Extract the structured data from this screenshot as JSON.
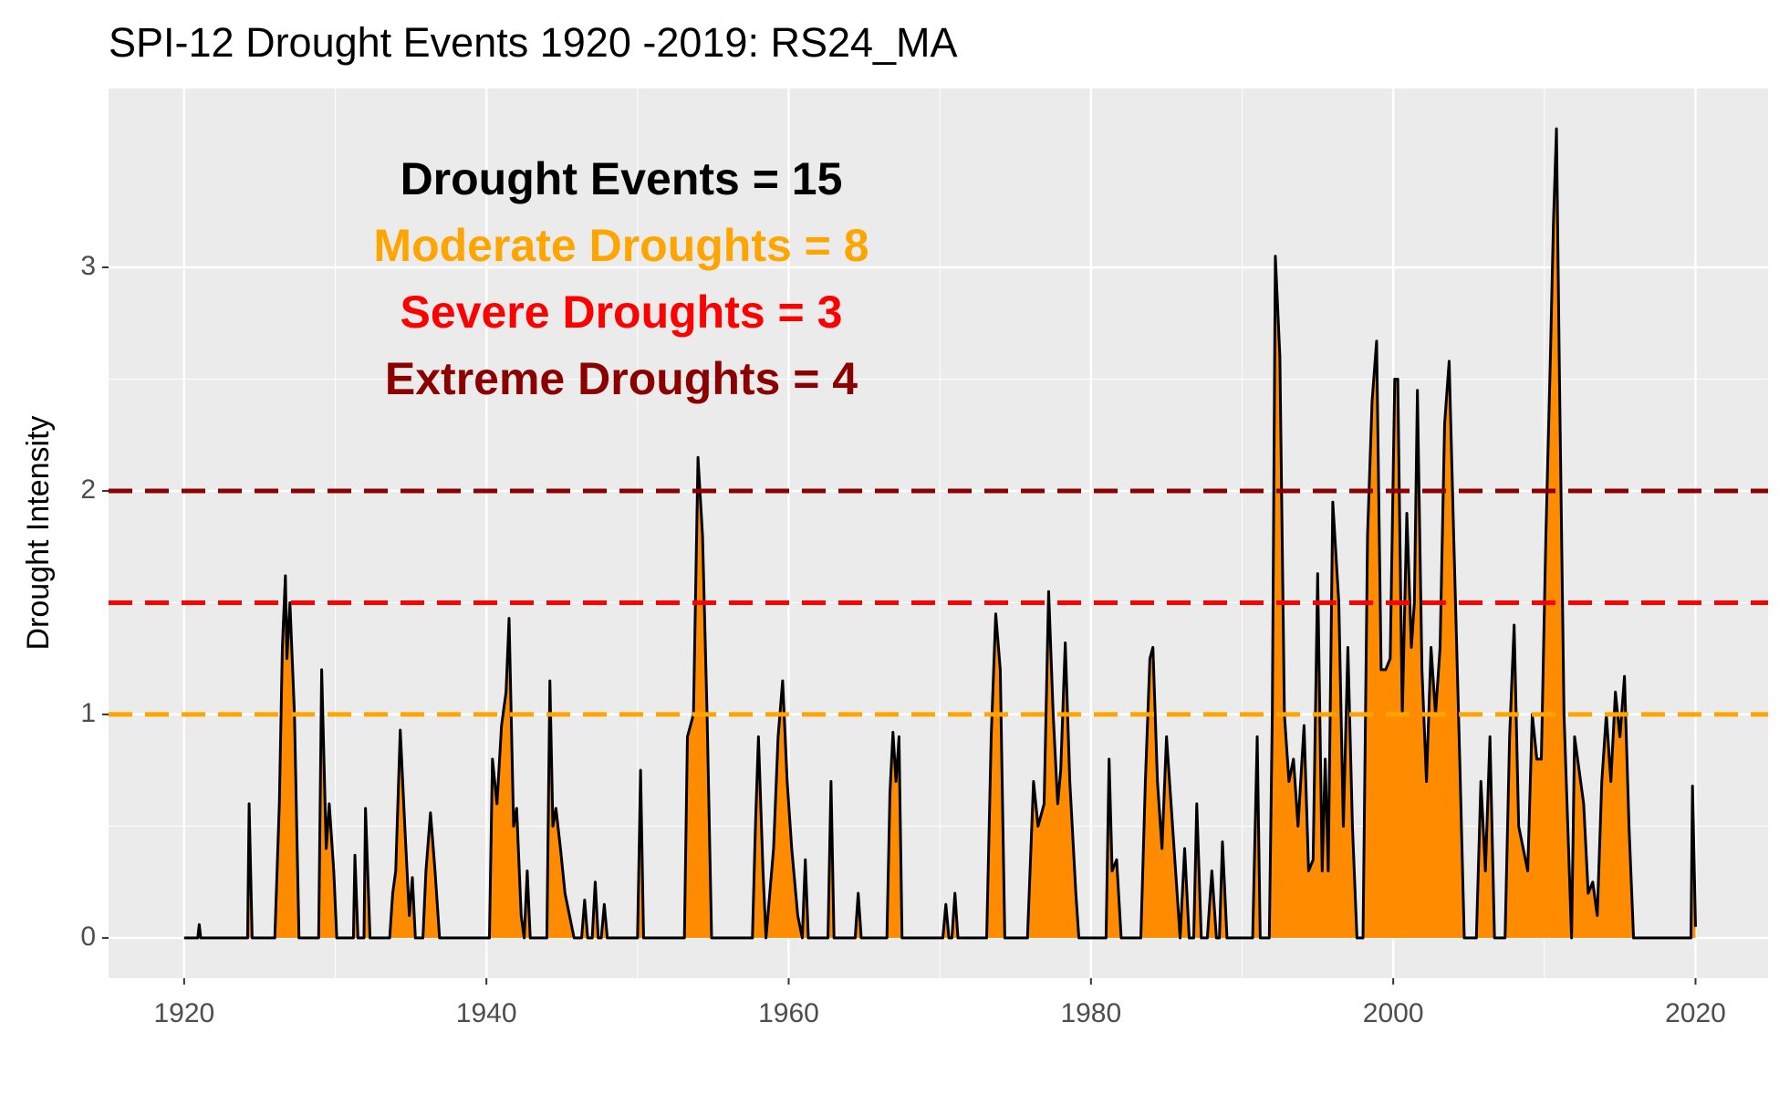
{
  "chart_data": {
    "type": "area",
    "title": "SPI-12 Drought Events 1920 -2019: RS24_MA",
    "y_label": "Drought Intensity",
    "x": [
      1920.0,
      1920.9,
      1921.0,
      1921.1,
      1924.2,
      1924.3,
      1924.5,
      1926.0,
      1926.3,
      1926.5,
      1926.7,
      1926.8,
      1927.0,
      1927.3,
      1927.6,
      1928.9,
      1929.1,
      1929.4,
      1929.6,
      1929.9,
      1930.1,
      1931.2,
      1931.3,
      1931.5,
      1931.9,
      1932.0,
      1932.3,
      1933.6,
      1933.8,
      1934.0,
      1934.3,
      1934.6,
      1934.9,
      1935.1,
      1935.3,
      1935.8,
      1936.0,
      1936.3,
      1936.6,
      1936.9,
      1940.2,
      1940.4,
      1940.7,
      1941.0,
      1941.3,
      1941.5,
      1941.8,
      1942.0,
      1942.3,
      1942.5,
      1942.7,
      1942.9,
      1944.0,
      1944.2,
      1944.4,
      1944.6,
      1944.9,
      1945.2,
      1945.5,
      1945.8,
      1946.3,
      1946.5,
      1946.7,
      1947.0,
      1947.2,
      1947.4,
      1947.6,
      1947.8,
      1948.0,
      1950.0,
      1950.2,
      1950.4,
      1953.1,
      1953.3,
      1953.7,
      1954.0,
      1954.3,
      1954.6,
      1954.9,
      1957.6,
      1957.8,
      1958.0,
      1958.3,
      1958.5,
      1959.0,
      1959.3,
      1959.6,
      1959.9,
      1960.2,
      1960.6,
      1960.9,
      1961.1,
      1961.3,
      1962.6,
      1962.8,
      1963.0,
      1964.4,
      1964.6,
      1964.8,
      1966.5,
      1966.7,
      1966.9,
      1967.1,
      1967.3,
      1967.5,
      1970.2,
      1970.4,
      1970.6,
      1970.8,
      1971.0,
      1971.2,
      1973.1,
      1973.4,
      1973.7,
      1974.0,
      1974.3,
      1975.8,
      1976.2,
      1976.5,
      1976.9,
      1977.2,
      1977.5,
      1977.8,
      1978.0,
      1978.3,
      1978.6,
      1979.0,
      1979.2,
      1981.0,
      1981.2,
      1981.4,
      1981.7,
      1982.0,
      1983.3,
      1983.6,
      1983.9,
      1984.1,
      1984.4,
      1984.7,
      1985.0,
      1985.3,
      1985.6,
      1985.9,
      1986.2,
      1986.5,
      1986.8,
      1987.0,
      1987.3,
      1987.7,
      1988.0,
      1988.3,
      1988.5,
      1988.7,
      1989.0,
      1990.7,
      1991.0,
      1991.2,
      1991.8,
      1992.0,
      1992.2,
      1992.5,
      1992.8,
      1993.1,
      1993.4,
      1993.7,
      1994.1,
      1994.4,
      1994.7,
      1995.0,
      1995.3,
      1995.5,
      1995.7,
      1996.0,
      1996.4,
      1996.7,
      1997.0,
      1997.3,
      1997.6,
      1998.0,
      1998.3,
      1998.6,
      1998.9,
      1999.2,
      1999.5,
      1999.8,
      2000.1,
      2000.3,
      2000.6,
      2000.9,
      2001.2,
      2001.4,
      2001.6,
      2001.9,
      2002.2,
      2002.5,
      2002.8,
      2003.1,
      2003.4,
      2003.7,
      2004.0,
      2004.4,
      2004.7,
      2005.5,
      2005.8,
      2006.1,
      2006.4,
      2006.7,
      2007.4,
      2007.7,
      2008.0,
      2008.3,
      2008.6,
      2008.9,
      2009.2,
      2009.5,
      2009.8,
      2010.1,
      2010.4,
      2010.6,
      2010.8,
      2011.0,
      2011.3,
      2011.6,
      2011.8,
      2012.0,
      2012.3,
      2012.6,
      2012.9,
      2013.2,
      2013.5,
      2013.8,
      2014.1,
      2014.4,
      2014.7,
      2015.0,
      2015.3,
      2015.6,
      2015.9,
      2019.7,
      2019.8,
      2020.0
    ],
    "series": [
      {
        "color": "#ff8c00",
        "line_color": "#000000",
        "values": [
          0,
          0,
          0.06,
          0,
          0,
          0.6,
          0,
          0,
          0.6,
          1.3,
          1.62,
          1.25,
          1.5,
          1.0,
          0,
          0,
          1.2,
          0.4,
          0.6,
          0.3,
          0,
          0,
          0.37,
          0,
          0,
          0.58,
          0,
          0,
          0.2,
          0.3,
          0.93,
          0.5,
          0.1,
          0.27,
          0,
          0,
          0.3,
          0.56,
          0.3,
          0,
          0,
          0.8,
          0.6,
          0.95,
          1.1,
          1.43,
          0.5,
          0.58,
          0.1,
          0,
          0.3,
          0,
          0,
          1.15,
          0.5,
          0.58,
          0.4,
          0.2,
          0.1,
          0,
          0,
          0.17,
          0,
          0,
          0.25,
          0,
          0,
          0.15,
          0,
          0,
          0.75,
          0,
          0,
          0.9,
          1.0,
          2.15,
          1.8,
          1.0,
          0,
          0,
          0.5,
          0.9,
          0.3,
          0,
          0.4,
          0.9,
          1.15,
          0.7,
          0.4,
          0.1,
          0,
          0.35,
          0,
          0,
          0.7,
          0,
          0,
          0.2,
          0,
          0,
          0.65,
          0.92,
          0.7,
          0.9,
          0,
          0,
          0.15,
          0,
          0,
          0.2,
          0,
          0,
          0.9,
          1.45,
          1.2,
          0,
          0,
          0.7,
          0.5,
          0.6,
          1.55,
          1.0,
          0.6,
          0.75,
          1.32,
          0.7,
          0.2,
          0,
          0,
          0.8,
          0.3,
          0.35,
          0,
          0,
          0.7,
          1.25,
          1.3,
          0.7,
          0.4,
          0.9,
          0.6,
          0.3,
          0,
          0.4,
          0,
          0,
          0.6,
          0,
          0,
          0.3,
          0,
          0,
          0.43,
          0,
          0,
          0.9,
          0,
          0,
          1.0,
          3.05,
          2.6,
          1.0,
          0.7,
          0.8,
          0.5,
          0.95,
          0.3,
          0.35,
          1.63,
          0.3,
          0.8,
          0.3,
          1.95,
          1.5,
          0.5,
          1.3,
          0.5,
          0,
          0,
          1.8,
          2.4,
          2.67,
          1.2,
          1.2,
          1.25,
          2.5,
          2.5,
          1.0,
          1.9,
          1.3,
          1.5,
          2.45,
          1.2,
          0.7,
          1.3,
          1.0,
          1.3,
          2.3,
          2.58,
          1.8,
          0.8,
          0,
          0,
          0.7,
          0.3,
          0.9,
          0,
          0,
          0.9,
          1.4,
          0.5,
          0.4,
          0.3,
          1.0,
          0.8,
          0.8,
          1.8,
          2.6,
          3.2,
          3.62,
          2.5,
          1.0,
          0.4,
          0,
          0.9,
          0.75,
          0.6,
          0.2,
          0.25,
          0.1,
          0.7,
          1.0,
          0.7,
          1.1,
          0.9,
          1.17,
          0.5,
          0,
          0,
          0.68,
          0.05
        ]
      }
    ],
    "reference_lines": [
      {
        "value": 1,
        "color": "#ffa500"
      },
      {
        "value": 1.5,
        "color": "#ff0000"
      },
      {
        "value": 2,
        "color": "#8b0000"
      }
    ],
    "annotations": [
      {
        "text": "Drought Events = 15",
        "color": "#000000"
      },
      {
        "text": "Moderate Droughts = 8",
        "color": "#ffa500"
      },
      {
        "text": "Severe Droughts = 3",
        "color": "#ff0000"
      },
      {
        "text": "Extreme Droughts = 4",
        "color": "#8b0000"
      }
    ],
    "xlim": [
      1915.0,
      2024.8
    ],
    "ylim": [
      -0.18,
      3.8
    ],
    "xticks": [
      1920,
      1940,
      1960,
      1980,
      2000,
      2020
    ],
    "yticks": [
      0,
      1,
      2,
      3
    ],
    "grid": true,
    "panel_color": "#ebebeb"
  }
}
